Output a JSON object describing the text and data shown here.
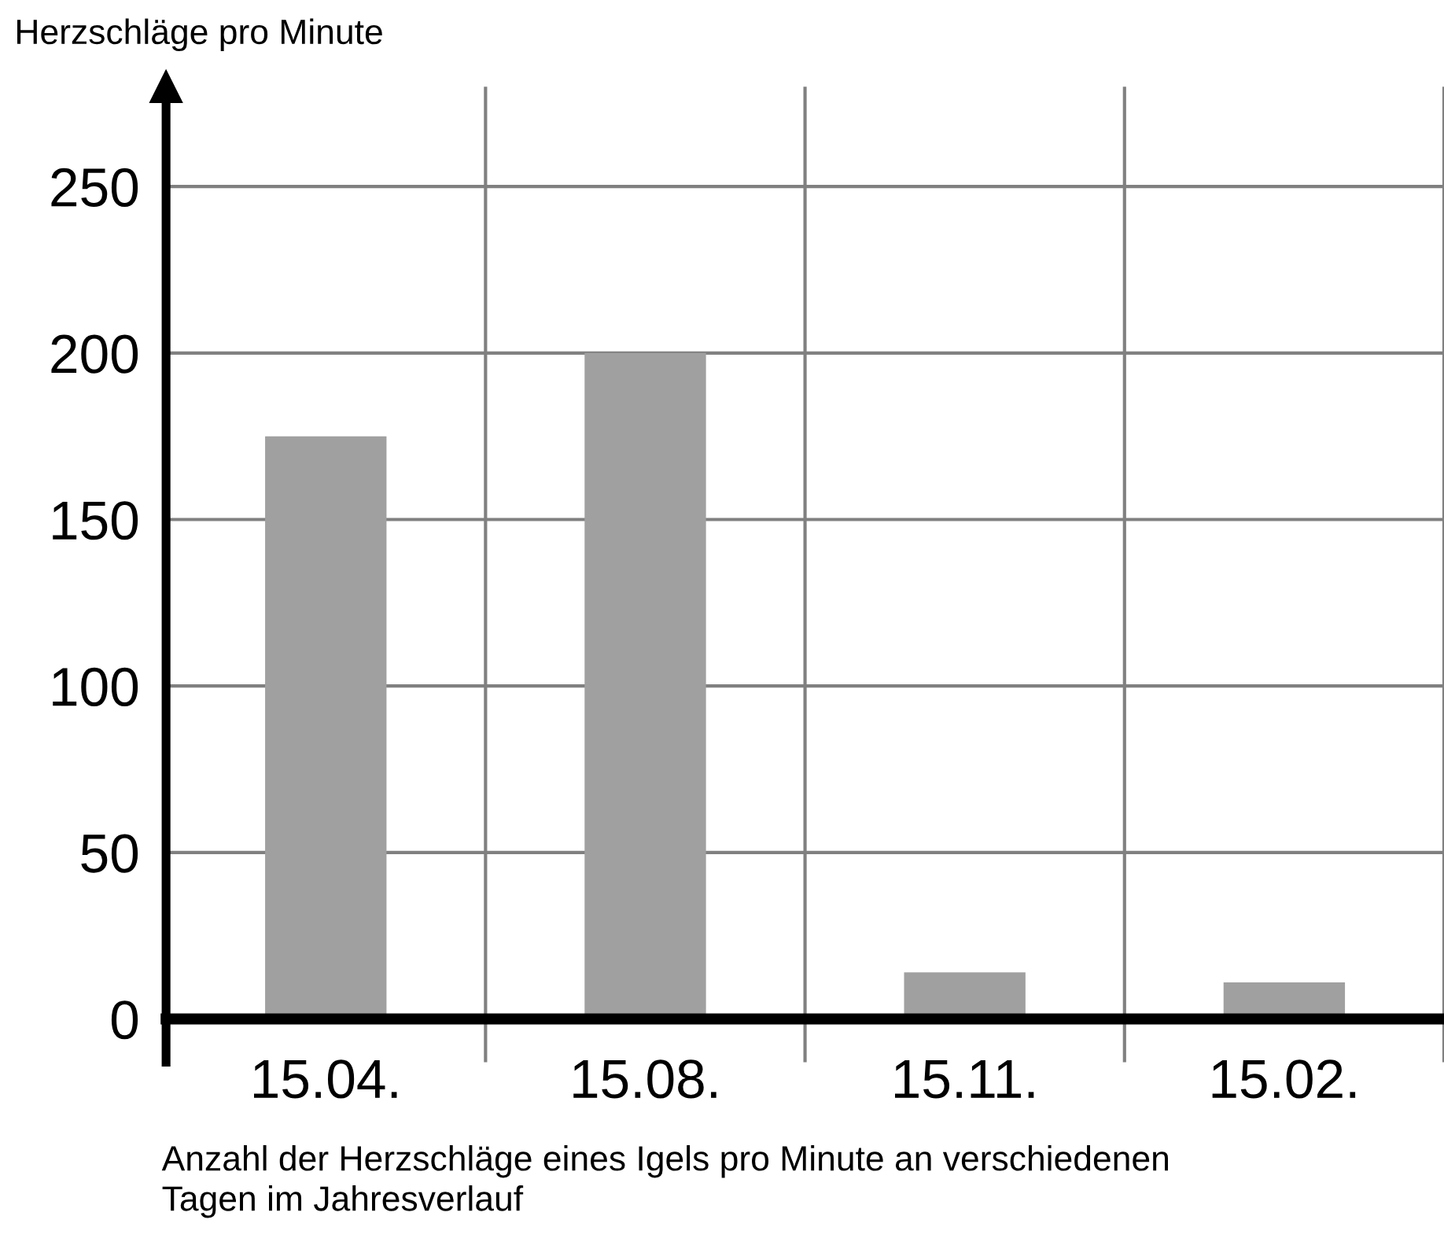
{
  "chart_data": {
    "type": "bar",
    "ylabel": "Herzschläge pro Minute",
    "xlabel": "Anzahl der Herzschläge eines Igels pro Minute an verschiedenen\nTagen im Jahresverlauf",
    "categories": [
      "15.04.",
      "15.08.",
      "15.11.",
      "15.02."
    ],
    "values": [
      175,
      200,
      14,
      11
    ],
    "color": "#a0a0a0",
    "ylim": [
      -13,
      280
    ],
    "yticks": [
      0,
      50,
      100,
      150,
      200,
      250
    ],
    "grid": true
  }
}
